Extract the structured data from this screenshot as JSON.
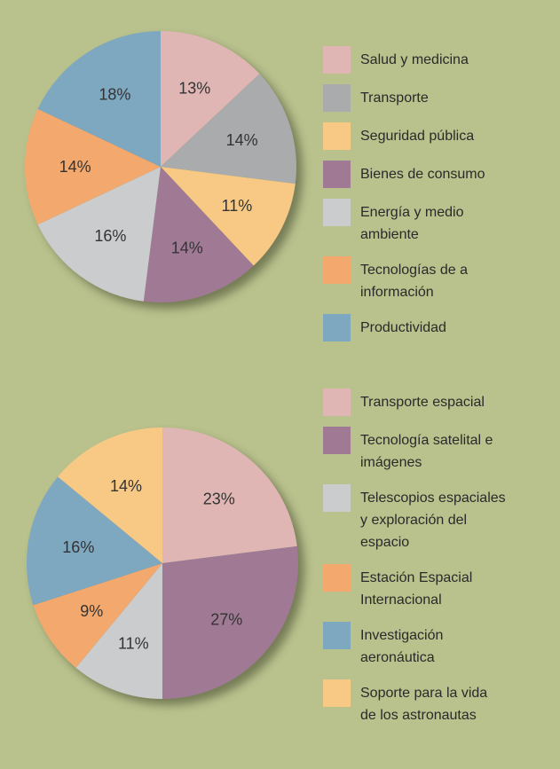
{
  "chart_data": [
    {
      "type": "pie",
      "categories": [
        "Salud y medicina",
        "Transporte",
        "Seguridad pública",
        "Bienes de consumo",
        "Energía y medio ambiente",
        "Tecnologías de a información",
        "Productividad"
      ],
      "values": [
        13,
        14,
        11,
        14,
        16,
        14,
        18
      ],
      "labels": [
        "13%",
        "14%",
        "11%",
        "14%",
        "16%",
        "14%",
        "18%"
      ],
      "colors": [
        "#dfb6b4",
        "#a9abad",
        "#f7c985",
        "#a07a95",
        "#cbcccd",
        "#f3a96e",
        "#7ea7c0"
      ],
      "legend_position": "right"
    },
    {
      "type": "pie",
      "categories": [
        "Transporte espacial",
        "Tecnología satelital e imágenes",
        "Telescopios espaciales y exploración del espacio",
        "Estación Espacial Internacional",
        "Investigación aeronáutica",
        "Soporte para la vida de los astronautas"
      ],
      "values": [
        23,
        27,
        11,
        9,
        16,
        14
      ],
      "labels": [
        "23%",
        "27%",
        "11%",
        "9%",
        "16%",
        "14%"
      ],
      "colors": [
        "#dfb6b4",
        "#a07a95",
        "#cbcccd",
        "#f3a96e",
        "#7ea7c0",
        "#f7c985"
      ],
      "legend_position": "right"
    }
  ]
}
